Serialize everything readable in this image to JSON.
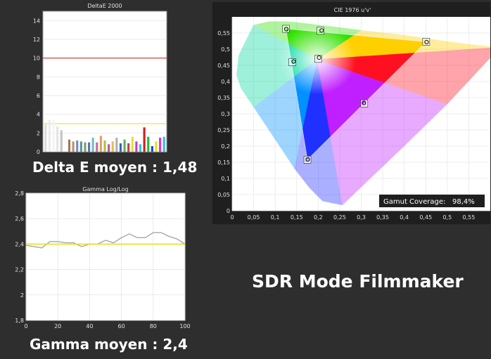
{
  "deltae": {
    "caption": "Delta E moyen : 1,48",
    "chart_data": {
      "type": "bar",
      "title": "DeltaE 2000",
      "ylim": [
        0,
        15
      ],
      "yticks": [
        "0",
        "2",
        "4",
        "6",
        "8",
        "10",
        "12",
        "14"
      ],
      "reference_lines": [
        {
          "value": 10,
          "color": "#d03030"
        },
        {
          "value": 3,
          "color": "#e8e840"
        }
      ],
      "values": [
        2.9,
        3.4,
        3.4,
        2.7,
        2.3,
        0.0,
        1.3,
        1.1,
        1.2,
        1.1,
        1.0,
        1.0,
        1.5,
        1.0,
        1.7,
        1.2,
        0.8,
        1.1,
        1.5,
        0.9,
        1.3,
        0.9,
        1.6,
        1.1,
        0.8,
        2.6,
        1.6,
        0.6,
        1.1,
        1.5,
        1.6
      ],
      "colors": [
        "#dcdcdc",
        "#ececec",
        "#f4f4f4",
        "#e4e4e4",
        "#c4c4c4",
        "#3a3a3a",
        "#a07850",
        "#c09070",
        "#7090c0",
        "#6090a0",
        "#80a060",
        "#6070c0",
        "#70c0c0",
        "#c070a0",
        "#e0a060",
        "#b0c040",
        "#c050a0",
        "#e0c050",
        "#b0b0b0",
        "#4060c0",
        "#60b060",
        "#c04040",
        "#e0e040",
        "#c040c0",
        "#40c0d0",
        "#d02020",
        "#20c030",
        "#2040d0",
        "#e0e020",
        "#e030e0",
        "#30c0e0"
      ]
    }
  },
  "gamma": {
    "caption": "Gamma moyen : 2,4",
    "chart_data": {
      "type": "line",
      "title": "Gamma Log/Log",
      "xlim": [
        0,
        100
      ],
      "ylim": [
        1.8,
        2.8
      ],
      "xticks": [
        "0",
        "20",
        "40",
        "60",
        "80",
        "100"
      ],
      "yticks": [
        "1,8",
        "2",
        "2,2",
        "2,4",
        "2,6",
        "2,8"
      ],
      "x": [
        0,
        5,
        10,
        15,
        20,
        25,
        30,
        35,
        40,
        45,
        50,
        55,
        60,
        65,
        70,
        75,
        80,
        85,
        90,
        95,
        100
      ],
      "series": [
        {
          "values": [
            2.39,
            2.38,
            2.37,
            2.42,
            2.42,
            2.41,
            2.41,
            2.38,
            2.4,
            2.4,
            2.43,
            2.41,
            2.45,
            2.48,
            2.45,
            2.45,
            2.49,
            2.49,
            2.46,
            2.44,
            2.4
          ],
          "color": "#a8a8a8"
        },
        {
          "values": [
            2.4,
            2.4,
            2.4,
            2.4,
            2.4,
            2.4,
            2.4,
            2.4,
            2.4,
            2.4,
            2.4,
            2.4,
            2.4,
            2.4,
            2.4,
            2.4,
            2.4,
            2.4,
            2.4,
            2.4,
            2.4
          ],
          "color": "#e8e020"
        }
      ]
    }
  },
  "cie": {
    "chart_data": {
      "type": "scatter",
      "title": "CIE 1976 u'v'",
      "xlim": [
        0,
        0.6
      ],
      "ylim": [
        0,
        0.6
      ],
      "xticks": [
        "0",
        "0,05",
        "0,1",
        "0,15",
        "0,2",
        "0,25",
        "0,3",
        "0,35",
        "0,4",
        "0,45",
        "0,5",
        "0,55"
      ],
      "yticks": [
        "0",
        "0,05",
        "0,1",
        "0,15",
        "0,2",
        "0,25",
        "0,3",
        "0,35",
        "0,4",
        "0,45",
        "0,5",
        "0,55"
      ],
      "gamut_triangle": [
        [
          0.451,
          0.523
        ],
        [
          0.125,
          0.563
        ],
        [
          0.175,
          0.158
        ]
      ],
      "target_points": [
        [
          0.451,
          0.523
        ],
        [
          0.125,
          0.563
        ],
        [
          0.175,
          0.158
        ],
        [
          0.14,
          0.46
        ],
        [
          0.2,
          0.47
        ],
        [
          0.205,
          0.557
        ],
        [
          0.307,
          0.332
        ]
      ],
      "measured_points": [
        [
          0.452,
          0.522
        ],
        [
          0.126,
          0.562
        ],
        [
          0.176,
          0.159
        ],
        [
          0.143,
          0.462
        ],
        [
          0.202,
          0.474
        ],
        [
          0.208,
          0.558
        ],
        [
          0.306,
          0.334
        ]
      ]
    },
    "gamut_label": "Gamut Coverage:",
    "gamut_value": "98,4%"
  },
  "mode_title": "SDR Mode Filmmaker"
}
